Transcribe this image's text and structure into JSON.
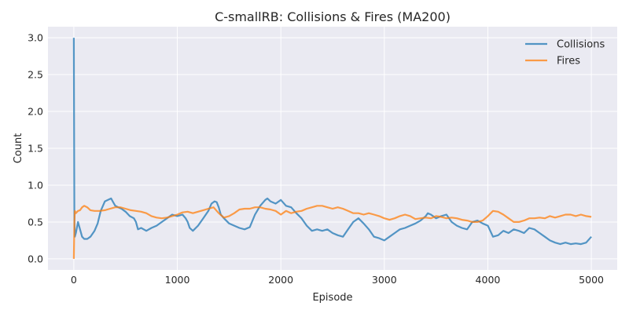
{
  "chart_data": {
    "type": "line",
    "title": "C-smallRB: Collisions & Fires (MA200)",
    "xlabel": "Episode",
    "ylabel": "Count",
    "xlim": [
      -250,
      5250
    ],
    "ylim": [
      -0.15,
      3.15
    ],
    "xticks": [
      0,
      1000,
      2000,
      3000,
      4000,
      5000
    ],
    "yticks": [
      0.0,
      0.5,
      1.0,
      1.5,
      2.0,
      2.5,
      3.0
    ],
    "xtick_labels": [
      "0",
      "1000",
      "2000",
      "3000",
      "4000",
      "5000"
    ],
    "ytick_labels": [
      "0.0",
      "0.5",
      "1.0",
      "1.5",
      "2.0",
      "2.5",
      "3.0"
    ],
    "grid": true,
    "legend_position": "top-right",
    "series": [
      {
        "name": "Collisions",
        "color": "#1f77b4",
        "x": [
          0,
          5,
          10,
          20,
          40,
          60,
          80,
          100,
          130,
          160,
          200,
          230,
          260,
          300,
          330,
          360,
          380,
          400,
          430,
          460,
          500,
          540,
          580,
          600,
          620,
          650,
          700,
          750,
          800,
          850,
          900,
          950,
          1000,
          1050,
          1080,
          1100,
          1120,
          1150,
          1200,
          1250,
          1300,
          1330,
          1360,
          1380,
          1400,
          1420,
          1450,
          1500,
          1550,
          1600,
          1650,
          1700,
          1750,
          1800,
          1850,
          1870,
          1900,
          1950,
          2000,
          2050,
          2100,
          2150,
          2200,
          2250,
          2300,
          2350,
          2400,
          2450,
          2500,
          2550,
          2600,
          2650,
          2700,
          2750,
          2800,
          2850,
          2900,
          2950,
          3000,
          3050,
          3100,
          3150,
          3200,
          3250,
          3300,
          3350,
          3400,
          3420,
          3450,
          3500,
          3550,
          3600,
          3650,
          3700,
          3750,
          3800,
          3850,
          3900,
          3950,
          4000,
          4050,
          4100,
          4150,
          4200,
          4250,
          4300,
          4350,
          4400,
          4450,
          4500,
          4550,
          4600,
          4650,
          4700,
          4750,
          4800,
          4850,
          4900,
          4950,
          5000
        ],
        "values": [
          3.0,
          0.5,
          0.3,
          0.35,
          0.5,
          0.4,
          0.3,
          0.27,
          0.27,
          0.3,
          0.38,
          0.48,
          0.65,
          0.78,
          0.8,
          0.82,
          0.77,
          0.72,
          0.7,
          0.68,
          0.64,
          0.58,
          0.55,
          0.5,
          0.4,
          0.42,
          0.38,
          0.42,
          0.45,
          0.5,
          0.55,
          0.6,
          0.58,
          0.6,
          0.55,
          0.5,
          0.42,
          0.38,
          0.45,
          0.55,
          0.65,
          0.75,
          0.78,
          0.77,
          0.7,
          0.6,
          0.55,
          0.48,
          0.45,
          0.42,
          0.4,
          0.43,
          0.6,
          0.72,
          0.8,
          0.82,
          0.78,
          0.75,
          0.8,
          0.72,
          0.7,
          0.62,
          0.55,
          0.45,
          0.38,
          0.4,
          0.38,
          0.4,
          0.35,
          0.32,
          0.3,
          0.4,
          0.5,
          0.55,
          0.48,
          0.4,
          0.3,
          0.28,
          0.25,
          0.3,
          0.35,
          0.4,
          0.42,
          0.45,
          0.48,
          0.52,
          0.58,
          0.62,
          0.6,
          0.55,
          0.58,
          0.6,
          0.5,
          0.45,
          0.42,
          0.4,
          0.5,
          0.52,
          0.48,
          0.45,
          0.3,
          0.32,
          0.38,
          0.35,
          0.4,
          0.38,
          0.35,
          0.42,
          0.4,
          0.35,
          0.3,
          0.25,
          0.22,
          0.2,
          0.22,
          0.2,
          0.21,
          0.2,
          0.22,
          0.3
        ]
      },
      {
        "name": "Fires",
        "color": "#ff7f0e",
        "x": [
          0,
          5,
          10,
          20,
          40,
          60,
          80,
          100,
          130,
          160,
          200,
          250,
          300,
          350,
          400,
          450,
          500,
          550,
          600,
          650,
          700,
          750,
          800,
          850,
          900,
          950,
          1000,
          1050,
          1100,
          1150,
          1200,
          1250,
          1300,
          1350,
          1400,
          1450,
          1500,
          1550,
          1600,
          1650,
          1700,
          1750,
          1800,
          1850,
          1900,
          1950,
          2000,
          2050,
          2100,
          2150,
          2200,
          2250,
          2300,
          2350,
          2400,
          2450,
          2500,
          2550,
          2600,
          2650,
          2700,
          2750,
          2800,
          2850,
          2900,
          2950,
          3000,
          3050,
          3100,
          3150,
          3200,
          3250,
          3300,
          3350,
          3400,
          3450,
          3500,
          3550,
          3600,
          3650,
          3700,
          3750,
          3800,
          3850,
          3900,
          3950,
          4000,
          4050,
          4100,
          4150,
          4200,
          4250,
          4300,
          4350,
          4400,
          4450,
          4500,
          4550,
          4600,
          4650,
          4700,
          4750,
          4800,
          4850,
          4900,
          4950,
          5000
        ],
        "values": [
          0.0,
          0.5,
          0.65,
          0.62,
          0.65,
          0.66,
          0.7,
          0.72,
          0.7,
          0.66,
          0.65,
          0.65,
          0.66,
          0.68,
          0.7,
          0.7,
          0.68,
          0.66,
          0.65,
          0.64,
          0.62,
          0.58,
          0.56,
          0.55,
          0.56,
          0.58,
          0.6,
          0.63,
          0.64,
          0.62,
          0.64,
          0.66,
          0.68,
          0.7,
          0.62,
          0.56,
          0.58,
          0.62,
          0.67,
          0.68,
          0.68,
          0.7,
          0.7,
          0.68,
          0.67,
          0.65,
          0.6,
          0.65,
          0.62,
          0.64,
          0.65,
          0.68,
          0.7,
          0.72,
          0.72,
          0.7,
          0.68,
          0.7,
          0.68,
          0.65,
          0.62,
          0.62,
          0.6,
          0.62,
          0.6,
          0.58,
          0.55,
          0.53,
          0.55,
          0.58,
          0.6,
          0.58,
          0.54,
          0.55,
          0.56,
          0.55,
          0.58,
          0.57,
          0.55,
          0.56,
          0.55,
          0.53,
          0.52,
          0.5,
          0.5,
          0.52,
          0.58,
          0.65,
          0.64,
          0.6,
          0.55,
          0.5,
          0.5,
          0.52,
          0.55,
          0.55,
          0.56,
          0.55,
          0.58,
          0.56,
          0.58,
          0.6,
          0.6,
          0.58,
          0.6,
          0.58,
          0.57
        ]
      }
    ]
  }
}
